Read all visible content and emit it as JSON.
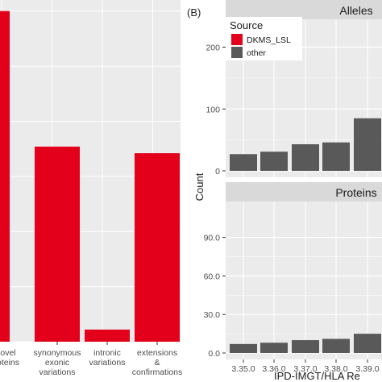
{
  "panel_b_label": "(B)",
  "chart_data": [
    {
      "type": "bar",
      "panel": "A",
      "categories": [
        [
          "ovel",
          "oteins"
        ],
        [
          "synonymous",
          "exonic",
          "variations"
        ],
        [
          "intronic",
          "variations"
        ],
        [
          "extensions",
          "&",
          "confirmations"
        ]
      ],
      "values": [
        300,
        177,
        11,
        171
      ],
      "ylim": [
        0,
        310
      ],
      "colors": {
        "bar": "#e3001b",
        "panel_bg": "#ebebeb",
        "grid": "#ffffff"
      },
      "grid": true
    },
    {
      "type": "bar",
      "panel": "B",
      "ylabel": "Count",
      "xlabel": "IPD-IMGT/HLA Re",
      "legend": {
        "title": "Source",
        "placement": "top-left",
        "entries": [
          {
            "name": "DKMS_LSL",
            "color": "#e3001b"
          },
          {
            "name": "other",
            "color": "#595959"
          }
        ]
      },
      "categories": [
        "3.35.0",
        "3.36.0",
        "3.37.0",
        "3.38.0",
        "3.39.0"
      ],
      "facets": [
        {
          "strip": "Alleles",
          "ylim": [
            0,
            245
          ],
          "yticks": [
            "0",
            "100",
            "200"
          ],
          "ytick_values": [
            0,
            100,
            200
          ],
          "series": [
            {
              "name": "other",
              "values": [
                27,
                31,
                43,
                46,
                85
              ]
            }
          ]
        },
        {
          "strip": "Proteins",
          "ylim": [
            0,
            118
          ],
          "yticks": [
            "0.0",
            "30.0",
            "60.0",
            "90.0"
          ],
          "ytick_values": [
            0,
            30,
            60,
            90
          ],
          "series": [
            {
              "name": "other",
              "values": [
                7,
                8,
                10,
                11,
                15
              ]
            }
          ]
        }
      ],
      "colors": {
        "strip_bg": "#d9d9d9",
        "panel_bg": "#ebebeb",
        "grid": "#ffffff",
        "bar_other": "#595959"
      },
      "grid": true
    }
  ]
}
